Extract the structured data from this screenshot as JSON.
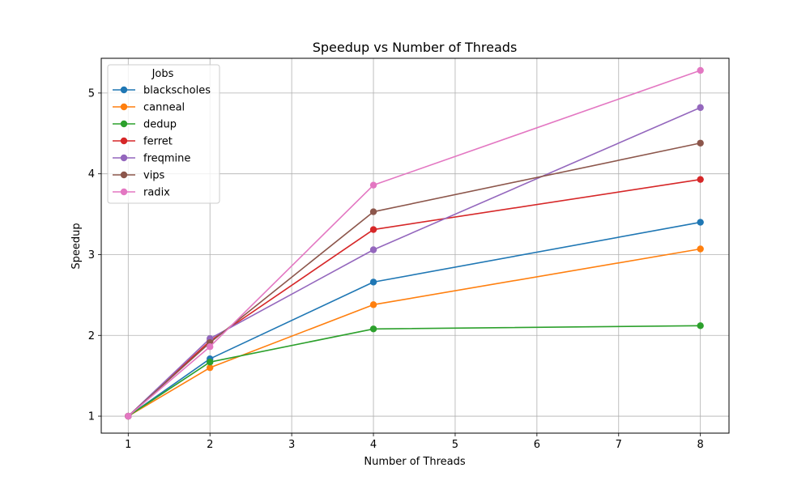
{
  "chart_data": {
    "type": "line",
    "title": "Speedup vs Number of Threads",
    "xlabel": "Number of Threads",
    "ylabel": "Speedup",
    "x": [
      1,
      2,
      4,
      8
    ],
    "xlim": [
      0.67,
      8.35
    ],
    "ylim": [
      0.79,
      5.43
    ],
    "xticks": [
      1,
      2,
      3,
      4,
      5,
      6,
      7,
      8
    ],
    "yticks": [
      1,
      2,
      3,
      4,
      5
    ],
    "grid": true,
    "legend": {
      "title": "Jobs",
      "placement": "top-left"
    },
    "series": [
      {
        "name": "blackscholes",
        "color": "#1f77b4",
        "values": [
          1.0,
          1.71,
          2.66,
          3.4
        ]
      },
      {
        "name": "canneal",
        "color": "#ff7f0e",
        "values": [
          1.0,
          1.6,
          2.38,
          3.07
        ]
      },
      {
        "name": "dedup",
        "color": "#2ca02c",
        "values": [
          1.0,
          1.67,
          2.08,
          2.12
        ]
      },
      {
        "name": "ferret",
        "color": "#d62728",
        "values": [
          1.0,
          1.93,
          3.31,
          3.93
        ]
      },
      {
        "name": "freqmine",
        "color": "#9467bd",
        "values": [
          1.0,
          1.96,
          3.06,
          4.82
        ]
      },
      {
        "name": "vips",
        "color": "#8c564b",
        "values": [
          1.0,
          1.91,
          3.53,
          4.38
        ]
      },
      {
        "name": "radix",
        "color": "#e377c2",
        "values": [
          1.0,
          1.86,
          3.86,
          5.28
        ]
      }
    ]
  }
}
